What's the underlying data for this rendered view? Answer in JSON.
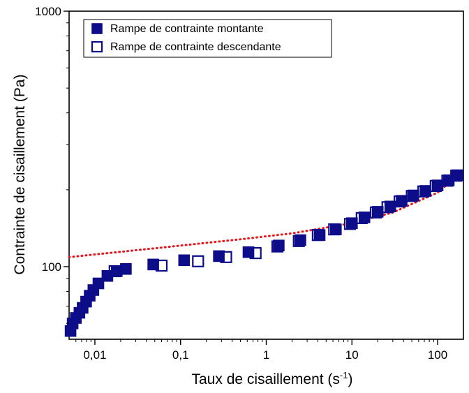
{
  "chart_data": {
    "type": "scatter",
    "xscale": "log",
    "yscale": "log",
    "xlim": [
      0.005,
      200
    ],
    "ylim": [
      52,
      1000
    ],
    "xticks": [
      {
        "value": 0.01,
        "label": "0,01"
      },
      {
        "value": 0.1,
        "label": "0,1"
      },
      {
        "value": 1,
        "label": "1"
      },
      {
        "value": 10,
        "label": "10"
      },
      {
        "value": 100,
        "label": "100"
      }
    ],
    "yticks": [
      {
        "value": 100,
        "label": "100"
      },
      {
        "value": 1000,
        "label": "1000"
      }
    ],
    "xlabel": {
      "main": "Taux de cisaillement (s",
      "sup": "-1",
      "end": ")"
    },
    "ylabel": "Contrainte de cisaillement (Pa)",
    "legend_position": "top-left",
    "grid": false,
    "series": [
      {
        "name": "Rampe de contrainte montante",
        "marker": "square-filled",
        "color": "#0d0d8a",
        "points": [
          [
            0.0052,
            56
          ],
          [
            0.0055,
            60
          ],
          [
            0.006,
            63
          ],
          [
            0.0066,
            66
          ],
          [
            0.0072,
            69
          ],
          [
            0.0079,
            73
          ],
          [
            0.0087,
            77
          ],
          [
            0.0096,
            81
          ],
          [
            0.011,
            86
          ],
          [
            0.014,
            92
          ],
          [
            0.018,
            96
          ],
          [
            0.023,
            98
          ],
          [
            0.048,
            102
          ],
          [
            0.11,
            106
          ],
          [
            0.28,
            110
          ],
          [
            0.62,
            114
          ],
          [
            1.4,
            121
          ],
          [
            2.5,
            127
          ],
          [
            4.2,
            133
          ],
          [
            6.5,
            140
          ],
          [
            10,
            148
          ],
          [
            14,
            156
          ],
          [
            20,
            164
          ],
          [
            28,
            172
          ],
          [
            38,
            181
          ],
          [
            52,
            190
          ],
          [
            72,
            198
          ],
          [
            100,
            208
          ],
          [
            135,
            218
          ],
          [
            170,
            228
          ]
        ]
      },
      {
        "name": "Rampe de contrainte descendante",
        "marker": "square-open",
        "color": "#0d0d8a",
        "points": [
          [
            0.017,
            96
          ],
          [
            0.06,
            101
          ],
          [
            0.16,
            105
          ],
          [
            0.34,
            109
          ],
          [
            0.75,
            113
          ],
          [
            1.35,
            120
          ],
          [
            2.4,
            126
          ],
          [
            4.0,
            133
          ],
          [
            6.2,
            140
          ],
          [
            9.5,
            147
          ],
          [
            13,
            155
          ],
          [
            19,
            163
          ],
          [
            26,
            171
          ],
          [
            36,
            180
          ],
          [
            50,
            189
          ],
          [
            68,
            197
          ],
          [
            95,
            207
          ],
          [
            130,
            217
          ],
          [
            165,
            227
          ]
        ]
      }
    ],
    "fit_line": {
      "style": "dotted",
      "color": "#e8141a",
      "points": [
        [
          0.005,
          109
        ],
        [
          0.05,
          118
        ],
        [
          0.5,
          128
        ],
        [
          2,
          135
        ],
        [
          10,
          148
        ],
        [
          30,
          163
        ],
        [
          100,
          195
        ],
        [
          180,
          230
        ]
      ]
    }
  }
}
